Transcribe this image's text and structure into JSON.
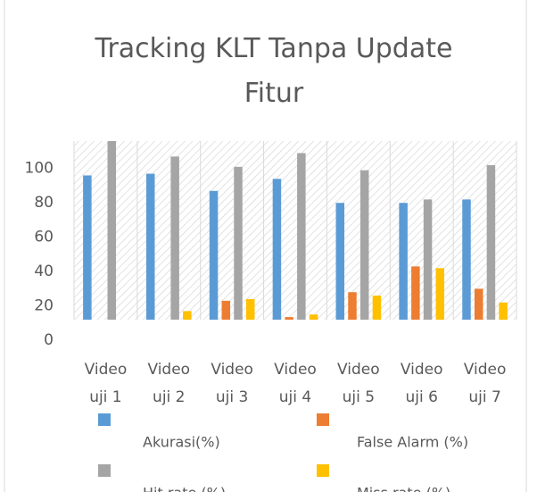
{
  "chart_data": {
    "type": "bar",
    "title": "Tracking KLT Tanpa Update Fitur",
    "categories": [
      "Video uji 1",
      "Video uji 2",
      "Video uji 3",
      "Video uji 4",
      "Video uji 5",
      "Video uji 6",
      "Video uji 7"
    ],
    "series": [
      {
        "name": "Akurasi(%)",
        "color": "#5b9bd5",
        "values": [
          84,
          85,
          75,
          82,
          68,
          68,
          70
        ]
      },
      {
        "name": "False Alarm (%)",
        "color": "#ed7d31",
        "values": [
          0,
          0,
          11,
          1.5,
          16,
          31,
          18
        ]
      },
      {
        "name": "Hit rate (%)",
        "color": "#a5a5a5",
        "values": [
          104,
          95,
          89,
          97,
          87,
          70,
          90
        ]
      },
      {
        "name": "Miss rate (%)",
        "color": "#ffc000",
        "values": [
          0,
          5,
          12,
          3,
          14,
          30,
          10
        ]
      }
    ],
    "ylim": [
      0,
      104
    ],
    "yticks": [
      0,
      20,
      40,
      60,
      80,
      100
    ]
  }
}
